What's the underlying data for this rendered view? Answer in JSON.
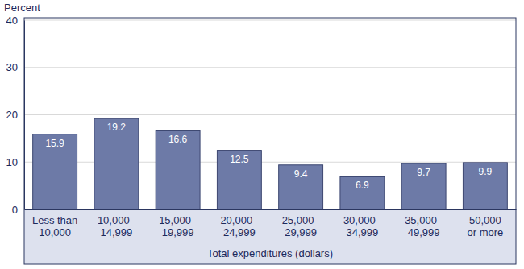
{
  "chart_data": {
    "type": "bar",
    "y_label": "Percent",
    "x_label": "Total expenditures (dollars)",
    "categories": [
      "Less than\n10,000",
      "10,000–\n14,999",
      "15,000–\n19,999",
      "20,000–\n24,999",
      "25,000–\n29,999",
      "30,000–\n34,999",
      "35,000–\n49,999",
      "50,000\nor more"
    ],
    "values": [
      15.9,
      19.2,
      16.6,
      12.5,
      9.4,
      6.9,
      9.7,
      9.9
    ],
    "color": "#6d7aa7",
    "ylim": [
      0,
      40
    ],
    "yticks": [
      0,
      10,
      20,
      30,
      40
    ],
    "grid": true,
    "data_labels": true
  }
}
